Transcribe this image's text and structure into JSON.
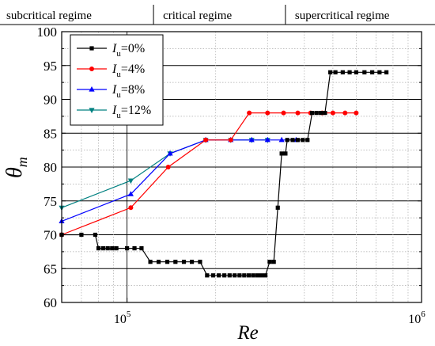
{
  "chart_data": {
    "type": "line",
    "x_scale": "log",
    "xlim": [
      60000,
      1000000
    ],
    "ylim": [
      60,
      100
    ],
    "y_ticks": [
      "60",
      "65",
      "70",
      "75",
      "80",
      "85",
      "90",
      "95",
      "100"
    ],
    "x_tick_labels": [
      {
        "value": 100000,
        "base": "10",
        "exp": "5"
      },
      {
        "value": 1000000,
        "base": "10",
        "exp": "6"
      }
    ],
    "xlabel": "Re",
    "ylabel": {
      "main": "θ",
      "sub": "m"
    },
    "grid": true,
    "legend_position": "top-left",
    "regimes": [
      {
        "label": "subcritical regime",
        "x_from": 60000,
        "x_to": 123000
      },
      {
        "label": "critical regime",
        "x_from": 123000,
        "x_to": 345000
      },
      {
        "label": "supercritical regime",
        "x_from": 345000,
        "x_to": 1000000
      }
    ],
    "series": [
      {
        "name": "I_u=0%",
        "legend_main": "I",
        "legend_sub": "u",
        "legend_rest": "=0%",
        "color": "#000000",
        "marker": "square",
        "points": [
          [
            60000,
            70
          ],
          [
            70000,
            70
          ],
          [
            78000,
            70
          ],
          [
            80000,
            68
          ],
          [
            83000,
            68
          ],
          [
            86000,
            68
          ],
          [
            89000,
            68
          ],
          [
            92000,
            68
          ],
          [
            100000,
            68
          ],
          [
            106000,
            68
          ],
          [
            112000,
            68
          ],
          [
            120000,
            66
          ],
          [
            128000,
            66
          ],
          [
            137000,
            66
          ],
          [
            146000,
            66
          ],
          [
            156000,
            66
          ],
          [
            166000,
            66
          ],
          [
            177000,
            66
          ],
          [
            187000,
            64
          ],
          [
            196000,
            64
          ],
          [
            205000,
            64
          ],
          [
            214000,
            64
          ],
          [
            223000,
            64
          ],
          [
            232000,
            64
          ],
          [
            241000,
            64
          ],
          [
            250000,
            64
          ],
          [
            259000,
            64
          ],
          [
            268000,
            64
          ],
          [
            277000,
            64
          ],
          [
            286000,
            64
          ],
          [
            295000,
            64
          ],
          [
            305000,
            66
          ],
          [
            315000,
            66
          ],
          [
            325000,
            74
          ],
          [
            335000,
            82
          ],
          [
            345000,
            82
          ],
          [
            350000,
            84
          ],
          [
            365000,
            84
          ],
          [
            380000,
            84
          ],
          [
            395000,
            84
          ],
          [
            410000,
            84
          ],
          [
            425000,
            88
          ],
          [
            440000,
            88
          ],
          [
            455000,
            88
          ],
          [
            470000,
            88
          ],
          [
            490000,
            94
          ],
          [
            510000,
            94
          ],
          [
            540000,
            94
          ],
          [
            570000,
            94
          ],
          [
            600000,
            94
          ],
          [
            640000,
            94
          ],
          [
            680000,
            94
          ],
          [
            720000,
            94
          ],
          [
            760000,
            94
          ]
        ]
      },
      {
        "name": "I_u=4%",
        "legend_main": "I",
        "legend_sub": "u",
        "legend_rest": "=4%",
        "color": "#ff0000",
        "marker": "circle",
        "points": [
          [
            60000,
            70
          ],
          [
            103000,
            74
          ],
          [
            138000,
            80
          ],
          [
            185000,
            84
          ],
          [
            225000,
            84
          ],
          [
            260000,
            88
          ],
          [
            300000,
            88
          ],
          [
            340000,
            88
          ],
          [
            380000,
            88
          ],
          [
            420000,
            88
          ],
          [
            460000,
            88
          ],
          [
            500000,
            88
          ],
          [
            550000,
            88
          ],
          [
            600000,
            88
          ]
        ]
      },
      {
        "name": "I_u=8%",
        "legend_main": "I",
        "legend_sub": "u",
        "legend_rest": "=8%",
        "color": "#0000ff",
        "marker": "triangle-up",
        "points": [
          [
            60000,
            72
          ],
          [
            103000,
            76
          ],
          [
            140000,
            82
          ],
          [
            185000,
            84
          ],
          [
            225000,
            84
          ],
          [
            265000,
            84
          ],
          [
            300000,
            84
          ],
          [
            335000,
            84
          ],
          [
            375000,
            84
          ]
        ]
      },
      {
        "name": "I_u=12%",
        "legend_main": "I",
        "legend_sub": "u",
        "legend_rest": "=12%",
        "color": "#008080",
        "marker": "triangle-down",
        "points": [
          [
            60000,
            74
          ],
          [
            103000,
            78
          ],
          [
            140000,
            82
          ],
          [
            185000,
            84
          ],
          [
            225000,
            84
          ],
          [
            265000,
            84
          ],
          [
            300000,
            84
          ]
        ]
      }
    ]
  }
}
